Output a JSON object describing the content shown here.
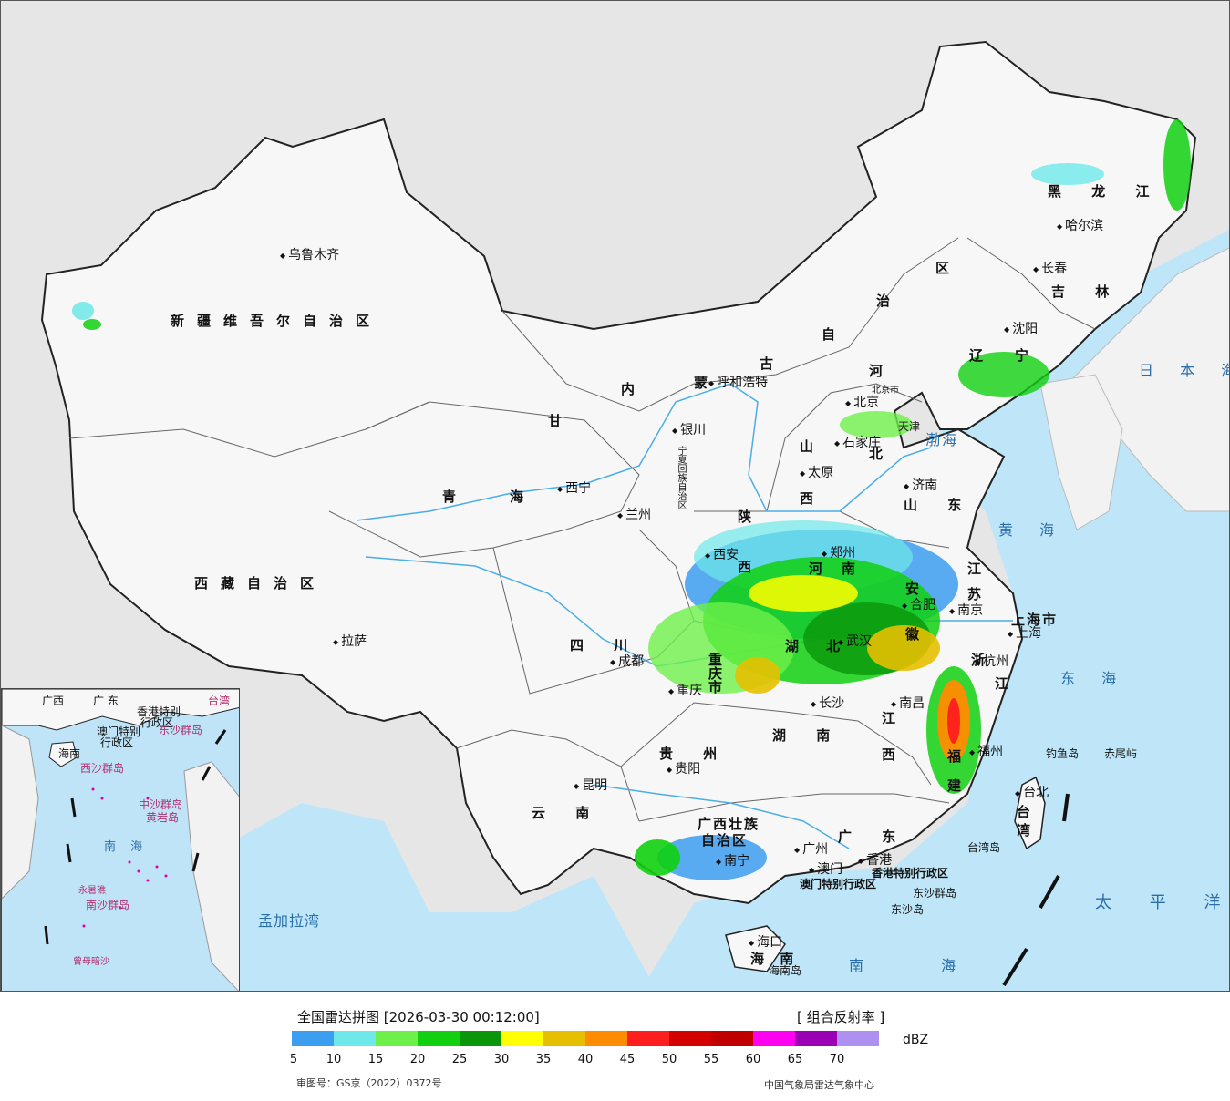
{
  "legend": {
    "title": "全国雷达拼图 [2026-03-30 00:12:00]",
    "product": "[ 组合反射率 ]",
    "unit": "dBZ",
    "colors": [
      "#3c9ef0",
      "#6ee8e8",
      "#6ef04a",
      "#10d010",
      "#0a960a",
      "#ffff00",
      "#e6c000",
      "#ff8c00",
      "#ff1e1e",
      "#d40000",
      "#c00000",
      "#ff00f0",
      "#9c00b4",
      "#ad90f0"
    ],
    "ticks": [
      "5",
      "10",
      "15",
      "20",
      "25",
      "30",
      "35",
      "40",
      "45",
      "50",
      "55",
      "60",
      "65",
      "70"
    ],
    "approval": "审图号：GS京（2022）0372号",
    "agency": "中国气象局雷达气象中心"
  },
  "regions": {
    "xinjiang": "新疆维吾尔自治区",
    "xizang": "西藏自治区",
    "qinghai_a": "青",
    "qinghai_b": "海",
    "gansu": "甘",
    "neimenggu_nei": "内",
    "neimenggu_meng": "蒙",
    "neimenggu_gu": "古",
    "neimenggu_zi": "自",
    "neimenggu_zhi": "治",
    "neimenggu_qu": "区",
    "heilongjiang": "黑 龙 江",
    "jilin": "吉 林",
    "liaoning": "辽",
    "liaoning2": "宁",
    "hebei_a": "河",
    "hebei_b": "北",
    "shanxi_a": "山",
    "shanxi_b": "西",
    "shaanxi": "陕",
    "shaanxi2": "西",
    "shandong": "山 东",
    "henan_a": "河",
    "henan_b": "南",
    "jiangsu_a": "江",
    "jiangsu_b": "苏",
    "anhui_a": "安",
    "anhui_b": "徽",
    "hubei_a": "湖",
    "hubei_b": "北",
    "sichuan": "四   川",
    "chongqing": "重",
    "chongqing2": "庆",
    "chongqing3": "市",
    "hunan": "湖   南",
    "jiangxi_a": "江",
    "jiangxi_b": "西",
    "zhejiang_a": "浙",
    "zhejiang_b": "江",
    "fujian": "福",
    "fujian2": "建",
    "guizhou": "贵   州",
    "yunnan": "云   南",
    "guangxi": "广西壮族",
    "guangxi2": "自治区",
    "guangdong": "广   东",
    "hainan": "海  南",
    "taiwan": "台\n湾",
    "ningxia": "宁夏回族自治区",
    "shanghai": "上海市",
    "beijing_city": "北京市",
    "tianjin": "天津",
    "hongkong_sar": "香港特别行政区",
    "macau_sar": "澳门特别行政区"
  },
  "cities": {
    "urumqi": "乌鲁木齐",
    "lasa": "拉萨",
    "xining": "西宁",
    "lanzhou": "兰州",
    "yinchuan": "银川",
    "huhehaote": "呼和浩特",
    "beijing": "北京",
    "shijiazhuang": "石家庄",
    "taiyuan": "太原",
    "jinan": "济南",
    "xian": "西安",
    "zhengzhou": "郑州",
    "hefei": "合肥",
    "nanjing": "南京",
    "shanghai": "上海",
    "hangzhou": "杭州",
    "wuhan": "武汉",
    "chengdu": "成都",
    "chongqing": "重庆",
    "changsha": "长沙",
    "nanchang": "南昌",
    "fuzhou": "福州",
    "guiyang": "贵阳",
    "kunming": "昆明",
    "nanning": "南宁",
    "guangzhou": "广州",
    "aomen": "澳门",
    "xianggang": "香港",
    "haikou": "海口",
    "taibei": "台北",
    "haerbin": "哈尔滨",
    "changchun": "长春",
    "shenyang": "沈阳"
  },
  "seas": {
    "bohai": "渤海",
    "huanghai": "黄 海",
    "donghai": "东 海",
    "nanhai": "南 海",
    "riben": "日 本 海",
    "taipingyang": "太 平 洋",
    "mengjiala": "孟加拉湾"
  },
  "islands": {
    "diaoyu": "钓鱼岛",
    "chiwei": "赤尾屿",
    "taiwan_dao": "台湾岛",
    "dongsha_qundao": "东沙群岛",
    "dongsha_dao": "东沙岛",
    "hainan_dao": "海南岛"
  },
  "inset": {
    "guangdong": "广   东",
    "guangxi": "广西",
    "taiwan": "台湾",
    "xianggang": "香港特别",
    "xingzheng": "行政区",
    "aomen": "澳门特别",
    "xingzheng2": "行政区",
    "dongsha": "东沙群岛",
    "hainan": "海南",
    "xisha": "西沙群岛",
    "zhongsha": "中沙群岛",
    "huangyan": "黄岩岛",
    "nanhai": "南   海",
    "nansha": "南沙群岛",
    "yongshu": "永暑礁",
    "zengmu": "曾母暗沙"
  }
}
